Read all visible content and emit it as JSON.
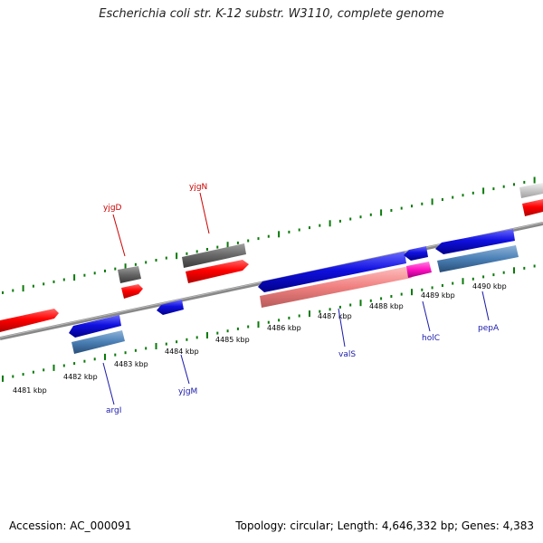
{
  "title": "Escherichia coli str. K-12 substr. W3110, complete genome",
  "accession": "Accession: AC_000091",
  "summary": "Topology: circular; Length: 4,646,332 bp; Genes: 4,383",
  "kbp_labels": [
    "4481 kbp",
    "4482 kbp",
    "4483 kbp",
    "4484 kbp",
    "4485 kbp",
    "4486 kbp",
    "4487 kbp",
    "4488 kbp",
    "4489 kbp",
    "4490 kbp"
  ],
  "genes": {
    "yjgD": "yjgD",
    "yjgN": "yjgN",
    "argI": "argI",
    "yjgM": "yjgM",
    "valS": "valS",
    "holC": "holC",
    "pepA": "pepA"
  },
  "colors": {
    "forward": "#ff0000",
    "reverse": "#1010e0",
    "rna": "#4a7fb5",
    "pseudo": "#666666",
    "tick": "#0a7a0a",
    "backbone": "#888888"
  }
}
